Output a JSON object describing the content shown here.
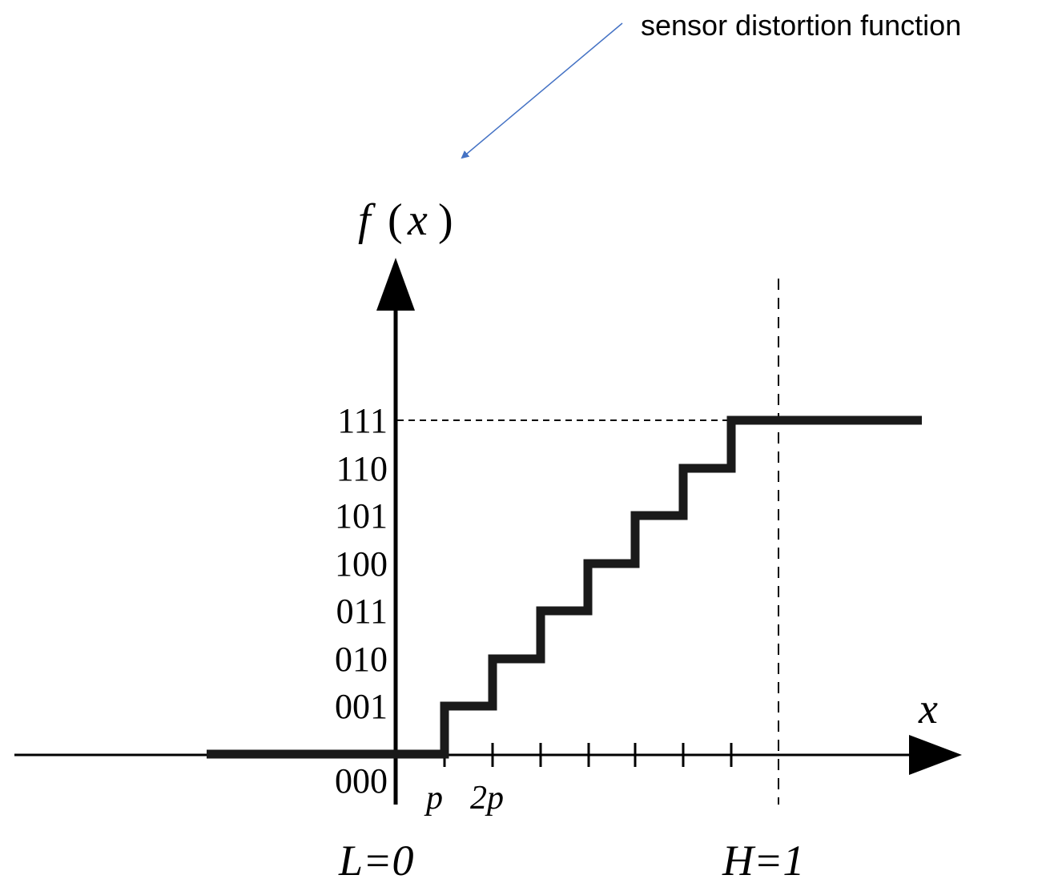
{
  "annotation": {
    "text": "sensor distortion function",
    "arrow_color": "#4472C4"
  },
  "axes": {
    "y_label_f": "f",
    "y_label_paren_open": "(",
    "y_label_x": "x",
    "y_label_paren_close": ")",
    "x_label": "x"
  },
  "y_levels": [
    "000",
    "001",
    "010",
    "011",
    "100",
    "101",
    "110",
    "111"
  ],
  "x_tick_labels": [
    "p",
    "2p"
  ],
  "bounds": {
    "low": "L=0",
    "high": "H=1"
  },
  "colors": {
    "curve": "#1a1a1a",
    "axis": "#000000"
  }
}
